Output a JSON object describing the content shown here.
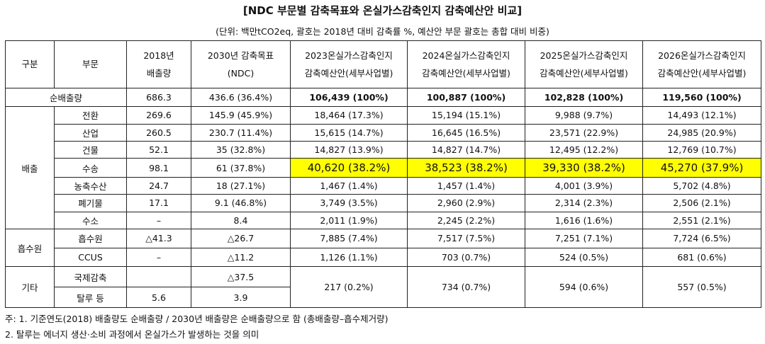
{
  "title": "[NDC 부문별 감축목표와 온실가스감축인지 감축예산안 비교]",
  "subtitle": "(단위: 백만tCO2eq, 괄호는 2018년 대비 감축률 %, 예산안 부문 괄호는 총합 대비 비중)",
  "header": {
    "c0": "구분",
    "c1": "부문",
    "c2": [
      "2018년",
      "배출량"
    ],
    "c3": [
      "2030년 감축목표",
      "(NDC)"
    ],
    "c4": [
      "2023온실가스감축인지",
      "감축예산안(세부사업별)"
    ],
    "c5": [
      "2024온실가스감축인지",
      "감축예산안(세부사업별)"
    ],
    "c6": [
      "2025온실가스감축인지",
      "감축예산안(세부사업별)"
    ],
    "c7": [
      "2026온실가스감축인지",
      "감축예산안(세부사업별)"
    ]
  },
  "net": {
    "label": "순배출량",
    "v2018": "686.3",
    "v2030": "436.6 (36.4%)",
    "b2023": "106,439 (100%)",
    "b2024": "100,887 (100%)",
    "b2025": "102,828 (100%)",
    "b2026": "119,560 (100%)"
  },
  "groups": {
    "emission": "배출",
    "absorb": "흡수원",
    "other": "기타"
  },
  "rows": [
    {
      "name": "전환",
      "v2018": "269.6",
      "v2030": "145.9 (45.9%)",
      "b2023": "18,464 (17.3%)",
      "b2024": "15,194 (15.1%)",
      "b2025": "9,988 (9.7%)",
      "b2026": "14,493 (12.1%)"
    },
    {
      "name": "산업",
      "v2018": "260.5",
      "v2030": "230.7 (11.4%)",
      "b2023": "15,615 (14.7%)",
      "b2024": "16,645 (16.5%)",
      "b2025": "23,571 (22.9%)",
      "b2026": "24,985 (20.9%)"
    },
    {
      "name": "건물",
      "v2018": "52.1",
      "v2030": "35 (32.8%)",
      "b2023": "14,827 (13.9%)",
      "b2024": "14,827 (14.7%)",
      "b2025": "12,495 (12.2%)",
      "b2026": "12,769 (10.7%)"
    },
    {
      "name": "수송",
      "v2018": "98.1",
      "v2030": "61 (37.8%)",
      "b2023": "40,620 (38.2%)",
      "b2024": "38,523 (38.2%)",
      "b2025": "39,330 (38.2%)",
      "b2026": "45,270 (37.9%)"
    },
    {
      "name": "농축수산",
      "v2018": "24.7",
      "v2030": "18 (27.1%)",
      "b2023": "1,467 (1.4%)",
      "b2024": "1,457 (1.4%)",
      "b2025": "4,001 (3.9%)",
      "b2026": "5,702 (4.8%)"
    },
    {
      "name": "폐기물",
      "v2018": "17.1",
      "v2030": "9.1 (46.8%)",
      "b2023": "3,749 (3.5%)",
      "b2024": "2,960 (2.9%)",
      "b2025": "2,314 (2.3%)",
      "b2026": "2,506 (2.1%)"
    },
    {
      "name": "수소",
      "v2018": "–",
      "v2030": "8.4",
      "b2023": "2,011 (1.9%)",
      "b2024": "2,245 (2.2%)",
      "b2025": "1,616 (1.6%)",
      "b2026": "2,551 (2.1%)"
    },
    {
      "name": "흡수원",
      "v2018": "△41.3",
      "v2030": "△26.7",
      "b2023": "7,885 (7.4%)",
      "b2024": "7,517 (7.5%)",
      "b2025": "7,251 (7.1%)",
      "b2026": "7,724 (6.5%)"
    },
    {
      "name": "CCUS",
      "v2018": "–",
      "v2030": "△11.2",
      "b2023": "1,126 (1.1%)",
      "b2024": "703 (0.7%)",
      "b2025": "524 (0.5%)",
      "b2026": "681 (0.6%)"
    },
    {
      "name": "국제감축",
      "v2018": "",
      "v2030": "△37.5"
    },
    {
      "name": "탈루 등",
      "v2018": "5.6",
      "v2030": "3.9"
    }
  ],
  "other_budget": {
    "b2023": "217 (0.2%)",
    "b2024": "734 (0.7%)",
    "b2025": "594 (0.6%)",
    "b2026": "557 (0.5%)"
  },
  "highlight_color": "#ffff00",
  "notes": [
    "주: 1. 기준연도(2018) 배출량도 순배출량 / 2030년 배출량은 순배출량으로 함 (총배출량–흡수제거량)",
    "2. 탈루는 에너지 생산·소비 과정에서 온실가스가 발생하는 것을 의미"
  ]
}
